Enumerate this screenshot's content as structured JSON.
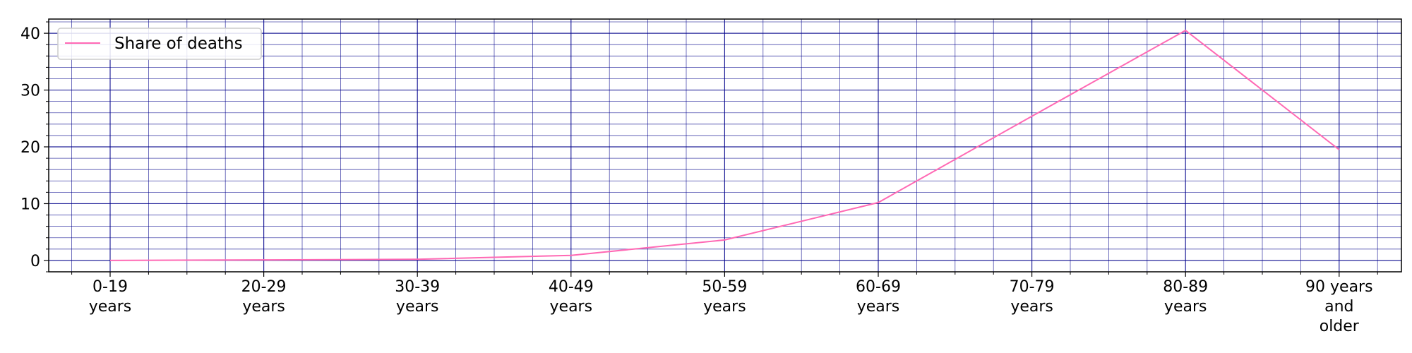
{
  "chart_data": {
    "type": "line",
    "title": "",
    "xlabel": "",
    "ylabel": "",
    "categories": [
      [
        "0-19",
        "years"
      ],
      [
        "20-29",
        "years"
      ],
      [
        "30-39",
        "years"
      ],
      [
        "40-49",
        "years"
      ],
      [
        "50-59",
        "years"
      ],
      [
        "60-69",
        "years"
      ],
      [
        "70-79",
        "years"
      ],
      [
        "80-89",
        "years"
      ],
      [
        "90 years",
        "and",
        "older"
      ]
    ],
    "series": [
      {
        "name": "Share of deaths",
        "color": "#ff69b4",
        "values": [
          0.0,
          0.1,
          0.2,
          0.9,
          3.6,
          10.2,
          25.4,
          40.5,
          19.5
        ]
      }
    ],
    "ylim": [
      -2,
      42.5
    ],
    "yticks": [
      0,
      10,
      20,
      30,
      40
    ],
    "grid": true,
    "grid_color": "#00008b",
    "legend_position": "top-left"
  }
}
